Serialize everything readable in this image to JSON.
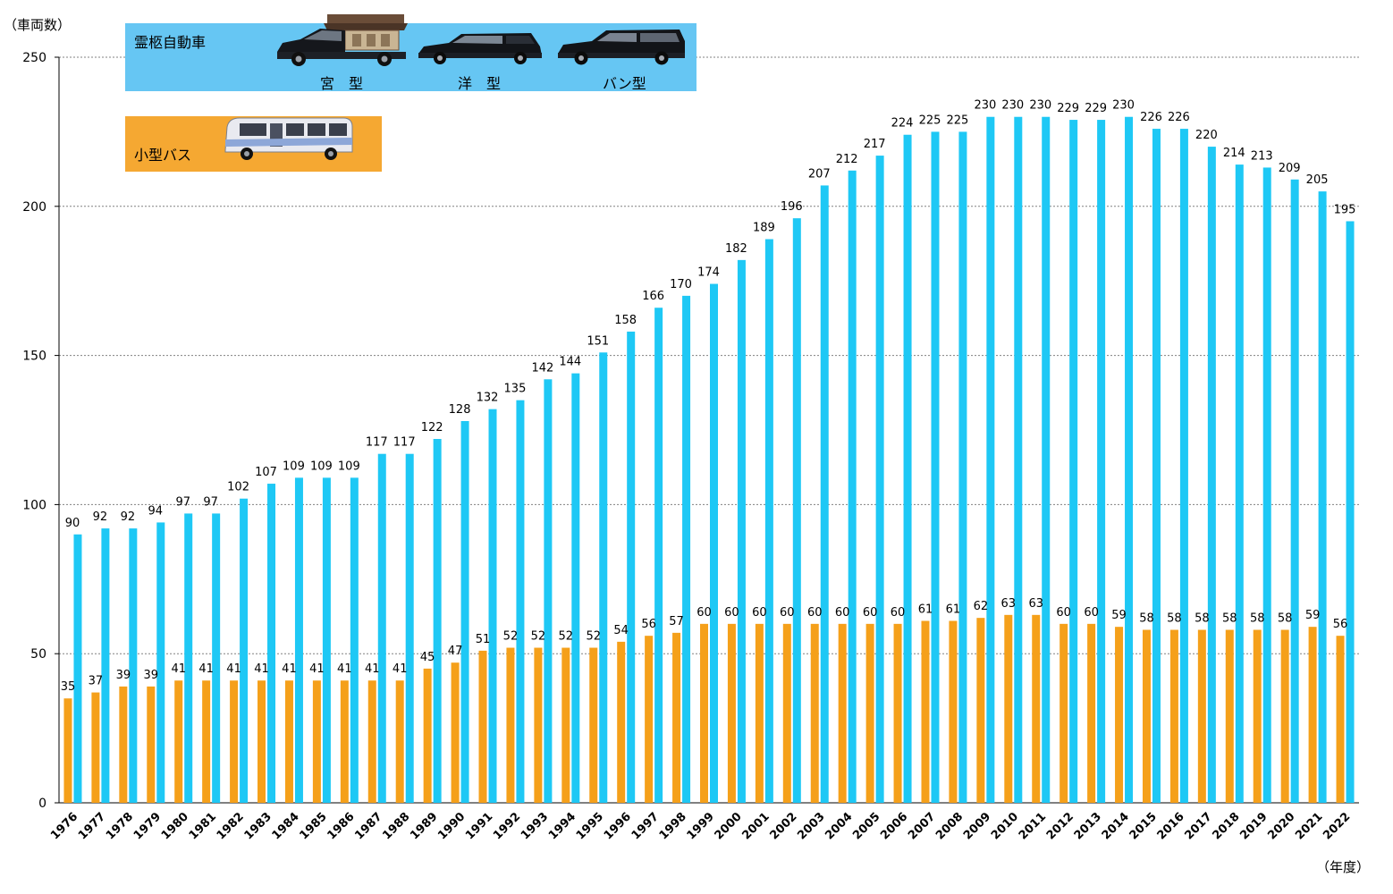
{
  "chart_data": {
    "type": "bar",
    "ylabel": "（車両数）",
    "xlabel": "（年度）",
    "ylim": [
      0,
      250
    ],
    "yticks": [
      0,
      50,
      100,
      150,
      200,
      250
    ],
    "grid": true,
    "categories": [
      "1976",
      "1977",
      "1978",
      "1979",
      "1980",
      "1981",
      "1982",
      "1983",
      "1984",
      "1985",
      "1986",
      "1987",
      "1988",
      "1989",
      "1990",
      "1991",
      "1992",
      "1993",
      "1994",
      "1995",
      "1996",
      "1997",
      "1998",
      "1999",
      "2000",
      "2001",
      "2002",
      "2003",
      "2004",
      "2005",
      "2006",
      "2007",
      "2008",
      "2009",
      "2010",
      "2011",
      "2012",
      "2013",
      "2014",
      "2015",
      "2016",
      "2017",
      "2018",
      "2019",
      "2020",
      "2021",
      "2022"
    ],
    "series": [
      {
        "name": "小型バス",
        "color": "#f5a01a",
        "values": [
          35,
          37,
          39,
          39,
          41,
          41,
          41,
          41,
          41,
          41,
          41,
          41,
          41,
          45,
          47,
          51,
          52,
          52,
          52,
          52,
          54,
          56,
          57,
          60,
          60,
          60,
          60,
          60,
          60,
          60,
          60,
          61,
          61,
          62,
          63,
          63,
          60,
          60,
          59,
          58,
          58,
          58,
          58,
          58,
          58,
          59,
          56
        ]
      },
      {
        "name": "霊柩自動車",
        "color": "#1ec8f5",
        "values": [
          90,
          92,
          92,
          94,
          97,
          97,
          102,
          107,
          109,
          109,
          109,
          117,
          117,
          122,
          128,
          132,
          135,
          142,
          144,
          151,
          158,
          166,
          170,
          174,
          182,
          189,
          196,
          207,
          212,
          217,
          224,
          225,
          225,
          230,
          230,
          230,
          229,
          229,
          230,
          226,
          226,
          220,
          214,
          213,
          209,
          205,
          195
        ]
      }
    ]
  },
  "legend": {
    "hearse_title": "霊柩自動車",
    "hearse_types": [
      "宮　型",
      "洋　型",
      "バン型"
    ],
    "bus_title": "小型バス",
    "hearse_color": "#66c6f3",
    "bus_color": "#f5a832"
  }
}
